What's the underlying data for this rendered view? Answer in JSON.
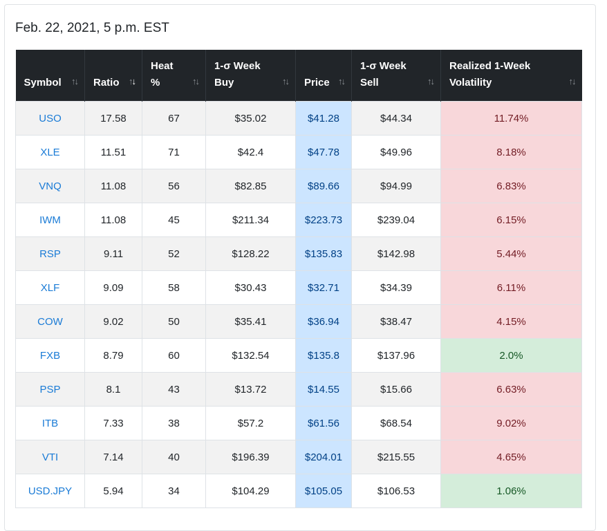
{
  "heading": "Feb. 22, 2021, 5 p.m. EST",
  "columns": {
    "symbol": "Symbol",
    "ratio": "Ratio",
    "heat_line1": "Heat",
    "heat_line2": "%",
    "buy_line1": "1-σ Week",
    "buy_line2": "Buy",
    "price": "Price",
    "sell_line1": "1-σ Week",
    "sell_line2": "Sell",
    "vol_line1": "Realized 1-Week",
    "vol_line2": "Volatility"
  },
  "sort_icon": "↑↓",
  "rows": [
    {
      "symbol": "USO",
      "ratio": "17.58",
      "heat": "67",
      "buy": "$35.02",
      "price": "$41.28",
      "sell": "$44.34",
      "vol": "11.74%",
      "vol_status": "red"
    },
    {
      "symbol": "XLE",
      "ratio": "11.51",
      "heat": "71",
      "buy": "$42.4",
      "price": "$47.78",
      "sell": "$49.96",
      "vol": "8.18%",
      "vol_status": "red"
    },
    {
      "symbol": "VNQ",
      "ratio": "11.08",
      "heat": "56",
      "buy": "$82.85",
      "price": "$89.66",
      "sell": "$94.99",
      "vol": "6.83%",
      "vol_status": "red"
    },
    {
      "symbol": "IWM",
      "ratio": "11.08",
      "heat": "45",
      "buy": "$211.34",
      "price": "$223.73",
      "sell": "$239.04",
      "vol": "6.15%",
      "vol_status": "red"
    },
    {
      "symbol": "RSP",
      "ratio": "9.11",
      "heat": "52",
      "buy": "$128.22",
      "price": "$135.83",
      "sell": "$142.98",
      "vol": "5.44%",
      "vol_status": "red"
    },
    {
      "symbol": "XLF",
      "ratio": "9.09",
      "heat": "58",
      "buy": "$30.43",
      "price": "$32.71",
      "sell": "$34.39",
      "vol": "6.11%",
      "vol_status": "red"
    },
    {
      "symbol": "COW",
      "ratio": "9.02",
      "heat": "50",
      "buy": "$35.41",
      "price": "$36.94",
      "sell": "$38.47",
      "vol": "4.15%",
      "vol_status": "red"
    },
    {
      "symbol": "FXB",
      "ratio": "8.79",
      "heat": "60",
      "buy": "$132.54",
      "price": "$135.8",
      "sell": "$137.96",
      "vol": "2.0%",
      "vol_status": "green"
    },
    {
      "symbol": "PSP",
      "ratio": "8.1",
      "heat": "43",
      "buy": "$13.72",
      "price": "$14.55",
      "sell": "$15.66",
      "vol": "6.63%",
      "vol_status": "red"
    },
    {
      "symbol": "ITB",
      "ratio": "7.33",
      "heat": "38",
      "buy": "$57.2",
      "price": "$61.56",
      "sell": "$68.54",
      "vol": "9.02%",
      "vol_status": "red"
    },
    {
      "symbol": "VTI",
      "ratio": "7.14",
      "heat": "40",
      "buy": "$196.39",
      "price": "$204.01",
      "sell": "$215.55",
      "vol": "4.65%",
      "vol_status": "red"
    },
    {
      "symbol": "USD.JPY",
      "ratio": "5.94",
      "heat": "34",
      "buy": "$104.29",
      "price": "$105.05",
      "sell": "$106.53",
      "vol": "1.06%",
      "vol_status": "green"
    }
  ],
  "colors": {
    "header_bg": "#212529",
    "price_bg": "#cce5ff",
    "vol_red_bg": "#f8d7da",
    "vol_green_bg": "#d4edda",
    "link": "#1a7bd6"
  },
  "sorted_column": "ratio",
  "sort_direction": "descending"
}
